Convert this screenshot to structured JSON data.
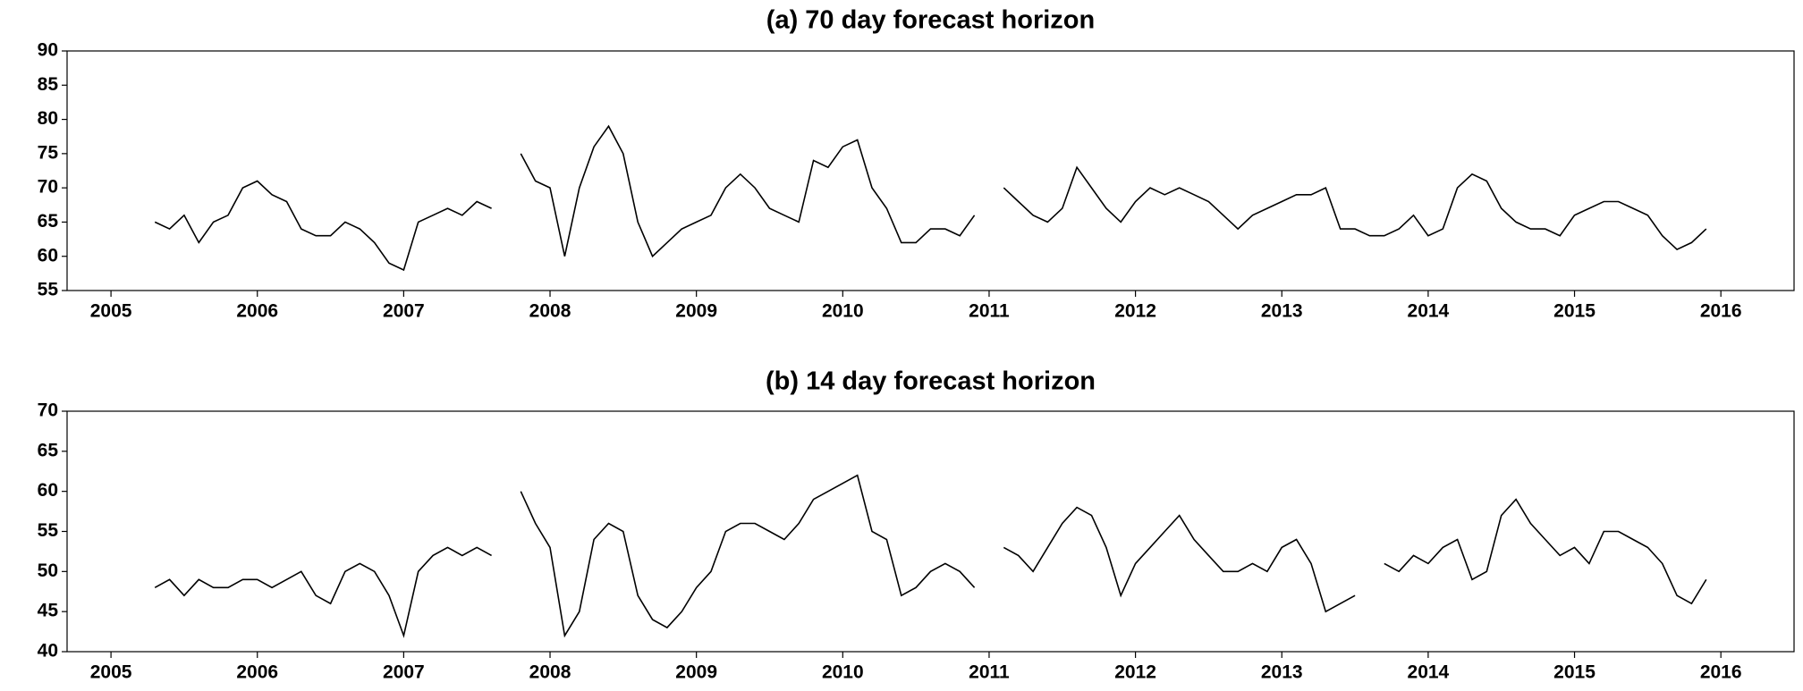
{
  "chart_data": [
    {
      "type": "line",
      "title": "(a) 70 day forecast horizon",
      "color": "#000000",
      "x": [
        2005.3,
        2005.4,
        2005.5,
        2005.6,
        2005.7,
        2005.8,
        2005.9,
        2006.0,
        2006.1,
        2006.2,
        2006.3,
        2006.4,
        2006.5,
        2006.6,
        2006.7,
        2006.8,
        2006.9,
        2007.0,
        2007.1,
        2007.2,
        2007.3,
        2007.4,
        2007.5,
        2007.6,
        2007.7,
        2007.8,
        2007.9,
        2008.0,
        2008.1,
        2008.2,
        2008.3,
        2008.4,
        2008.5,
        2008.6,
        2008.7,
        2008.8,
        2008.9,
        2009.0,
        2009.1,
        2009.2,
        2009.3,
        2009.4,
        2009.5,
        2009.6,
        2009.7,
        2009.8,
        2009.9,
        2010.0,
        2010.1,
        2010.2,
        2010.3,
        2010.4,
        2010.5,
        2010.6,
        2010.7,
        2010.8,
        2010.9,
        2011.0,
        2011.1,
        2011.2,
        2011.3,
        2011.4,
        2011.5,
        2011.6,
        2011.7,
        2011.8,
        2011.9,
        2012.0,
        2012.1,
        2012.2,
        2012.3,
        2012.4,
        2012.5,
        2012.6,
        2012.7,
        2012.8,
        2012.9,
        2013.0,
        2013.1,
        2013.2,
        2013.3,
        2013.4,
        2013.5,
        2013.6,
        2013.7,
        2013.8,
        2013.9,
        2014.0,
        2014.1,
        2014.2,
        2014.3,
        2014.4,
        2014.5,
        2014.6,
        2014.7,
        2014.8,
        2014.9,
        2015.0,
        2015.1,
        2015.2,
        2015.3,
        2015.4,
        2015.5,
        2015.6,
        2015.7,
        2015.8,
        2015.9
      ],
      "values": [
        65,
        64,
        66,
        62,
        65,
        66,
        70,
        71,
        69,
        68,
        64,
        63,
        63,
        65,
        64,
        62,
        59,
        58,
        65,
        66,
        67,
        66,
        68,
        67,
        null,
        75,
        71,
        70,
        60,
        70,
        76,
        79,
        75,
        65,
        60,
        62,
        64,
        65,
        66,
        70,
        72,
        70,
        67,
        66,
        65,
        74,
        73,
        76,
        77,
        70,
        67,
        62,
        62,
        64,
        64,
        63,
        66,
        null,
        70,
        68,
        66,
        65,
        67,
        73,
        70,
        67,
        65,
        68,
        70,
        69,
        70,
        69,
        68,
        66,
        64,
        66,
        67,
        68,
        69,
        69,
        70,
        64,
        64,
        63,
        63,
        64,
        66,
        63,
        64,
        70,
        72,
        71,
        67,
        65,
        64,
        64,
        63,
        66,
        67,
        68,
        68,
        67,
        66,
        63,
        61,
        62,
        64
      ],
      "xlim": [
        2004.7,
        2016.5
      ],
      "ylim": [
        55,
        90
      ],
      "yticks": [
        55,
        60,
        65,
        70,
        75,
        80,
        85,
        90
      ],
      "xticks": [
        2005,
        2006,
        2007,
        2008,
        2009,
        2010,
        2011,
        2012,
        2013,
        2014,
        2015,
        2016
      ]
    },
    {
      "type": "line",
      "title": "(b) 14 day forecast horizon",
      "color": "#000000",
      "x": [
        2005.3,
        2005.4,
        2005.5,
        2005.6,
        2005.7,
        2005.8,
        2005.9,
        2006.0,
        2006.1,
        2006.2,
        2006.3,
        2006.4,
        2006.5,
        2006.6,
        2006.7,
        2006.8,
        2006.9,
        2007.0,
        2007.1,
        2007.2,
        2007.3,
        2007.4,
        2007.5,
        2007.6,
        2007.7,
        2007.8,
        2007.9,
        2008.0,
        2008.1,
        2008.2,
        2008.3,
        2008.4,
        2008.5,
        2008.6,
        2008.7,
        2008.8,
        2008.9,
        2009.0,
        2009.1,
        2009.2,
        2009.3,
        2009.4,
        2009.5,
        2009.6,
        2009.7,
        2009.8,
        2009.9,
        2010.0,
        2010.1,
        2010.2,
        2010.3,
        2010.4,
        2010.5,
        2010.6,
        2010.7,
        2010.8,
        2010.9,
        2011.0,
        2011.1,
        2011.2,
        2011.3,
        2011.4,
        2011.5,
        2011.6,
        2011.7,
        2011.8,
        2011.9,
        2012.0,
        2012.1,
        2012.2,
        2012.3,
        2012.4,
        2012.5,
        2012.6,
        2012.7,
        2012.8,
        2012.9,
        2013.0,
        2013.1,
        2013.2,
        2013.3,
        2013.4,
        2013.5,
        2013.6,
        2013.7,
        2013.8,
        2013.9,
        2014.0,
        2014.1,
        2014.2,
        2014.3,
        2014.4,
        2014.5,
        2014.6,
        2014.7,
        2014.8,
        2014.9,
        2015.0,
        2015.1,
        2015.2,
        2015.3,
        2015.4,
        2015.5,
        2015.6,
        2015.7,
        2015.8,
        2015.9
      ],
      "values": [
        48,
        49,
        47,
        49,
        48,
        48,
        49,
        49,
        48,
        49,
        50,
        47,
        46,
        50,
        51,
        50,
        47,
        42,
        50,
        52,
        53,
        52,
        53,
        52,
        null,
        60,
        56,
        53,
        42,
        45,
        54,
        56,
        55,
        47,
        44,
        43,
        45,
        48,
        50,
        55,
        56,
        56,
        55,
        54,
        56,
        59,
        60,
        61,
        62,
        55,
        54,
        47,
        48,
        50,
        51,
        50,
        48,
        null,
        53,
        52,
        50,
        53,
        56,
        58,
        57,
        53,
        47,
        51,
        53,
        55,
        57,
        54,
        52,
        50,
        50,
        51,
        50,
        53,
        54,
        51,
        45,
        46,
        47,
        null,
        51,
        50,
        52,
        51,
        53,
        54,
        49,
        50,
        57,
        59,
        56,
        54,
        52,
        53,
        51,
        55,
        55,
        54,
        53,
        51,
        47,
        46,
        49
      ],
      "xlim": [
        2004.7,
        2016.5
      ],
      "ylim": [
        40,
        70
      ],
      "yticks": [
        40,
        45,
        50,
        55,
        60,
        65,
        70
      ],
      "xticks": [
        2005,
        2006,
        2007,
        2008,
        2009,
        2010,
        2011,
        2012,
        2013,
        2014,
        2015,
        2016
      ]
    }
  ]
}
